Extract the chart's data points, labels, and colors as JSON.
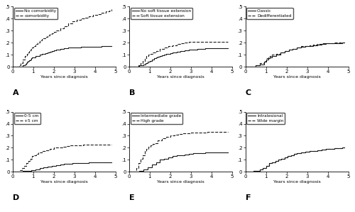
{
  "panels": [
    {
      "label": "A",
      "legend": [
        "No comorbidity",
        "comorbidity"
      ],
      "linestyles": [
        "solid",
        "dashed"
      ],
      "lines": [
        {
          "x": [
            0,
            0.45,
            0.5,
            0.55,
            0.6,
            0.65,
            0.7,
            0.75,
            0.8,
            0.85,
            0.9,
            0.95,
            1.0,
            1.1,
            1.2,
            1.3,
            1.4,
            1.5,
            1.6,
            1.7,
            1.8,
            1.9,
            2.0,
            2.1,
            2.2,
            2.3,
            2.5,
            2.7,
            2.9,
            3.1,
            3.3,
            3.5,
            3.7,
            3.9,
            4.1,
            4.3,
            4.5,
            4.7,
            4.8
          ],
          "y": [
            0,
            0,
            0.01,
            0.015,
            0.02,
            0.03,
            0.04,
            0.05,
            0.055,
            0.06,
            0.07,
            0.075,
            0.08,
            0.09,
            0.09,
            0.1,
            0.105,
            0.11,
            0.115,
            0.12,
            0.125,
            0.13,
            0.135,
            0.14,
            0.145,
            0.15,
            0.155,
            0.16,
            0.16,
            0.162,
            0.164,
            0.165,
            0.167,
            0.168,
            0.169,
            0.17,
            0.17,
            0.17,
            0.17
          ]
        },
        {
          "x": [
            0,
            0.3,
            0.4,
            0.5,
            0.6,
            0.7,
            0.75,
            0.8,
            0.85,
            0.9,
            0.95,
            1.0,
            1.1,
            1.2,
            1.3,
            1.4,
            1.5,
            1.6,
            1.7,
            1.8,
            1.9,
            2.0,
            2.1,
            2.3,
            2.5,
            2.7,
            2.9,
            3.1,
            3.3,
            3.5,
            3.7,
            3.9,
            4.1,
            4.3,
            4.5,
            4.7,
            4.8
          ],
          "y": [
            0,
            0.01,
            0.03,
            0.06,
            0.09,
            0.11,
            0.12,
            0.13,
            0.14,
            0.15,
            0.16,
            0.17,
            0.19,
            0.2,
            0.22,
            0.23,
            0.24,
            0.25,
            0.26,
            0.27,
            0.28,
            0.29,
            0.3,
            0.32,
            0.34,
            0.36,
            0.38,
            0.39,
            0.4,
            0.41,
            0.42,
            0.43,
            0.44,
            0.45,
            0.46,
            0.47,
            0.48
          ]
        }
      ]
    },
    {
      "label": "B",
      "legend": [
        "No soft tissue extension",
        "Soft tissue extension"
      ],
      "linestyles": [
        "solid",
        "dashed"
      ],
      "lines": [
        {
          "x": [
            0,
            0.5,
            0.6,
            0.7,
            0.8,
            0.9,
            1.0,
            1.1,
            1.2,
            1.3,
            1.4,
            1.5,
            1.6,
            1.7,
            1.8,
            1.9,
            2.0,
            2.1,
            2.3,
            2.5,
            2.7,
            2.9,
            3.1,
            3.3,
            3.5,
            3.7,
            3.9,
            4.1,
            4.3,
            4.5,
            4.7,
            4.8
          ],
          "y": [
            0,
            0.01,
            0.015,
            0.02,
            0.03,
            0.04,
            0.05,
            0.06,
            0.07,
            0.08,
            0.085,
            0.09,
            0.095,
            0.1,
            0.105,
            0.11,
            0.115,
            0.12,
            0.125,
            0.13,
            0.135,
            0.14,
            0.145,
            0.148,
            0.15,
            0.152,
            0.153,
            0.154,
            0.155,
            0.155,
            0.155,
            0.155
          ]
        },
        {
          "x": [
            0,
            0.45,
            0.55,
            0.65,
            0.75,
            0.85,
            0.95,
            1.05,
            1.15,
            1.3,
            1.5,
            1.7,
            1.9,
            2.0,
            2.1,
            2.3,
            2.5,
            2.7,
            2.9,
            3.1,
            3.3,
            3.5,
            3.7,
            3.9,
            4.1,
            4.3,
            4.5,
            4.7,
            4.8
          ],
          "y": [
            0,
            0.01,
            0.03,
            0.05,
            0.07,
            0.09,
            0.1,
            0.11,
            0.12,
            0.13,
            0.15,
            0.16,
            0.17,
            0.175,
            0.18,
            0.19,
            0.195,
            0.2,
            0.205,
            0.21,
            0.21,
            0.21,
            0.21,
            0.21,
            0.21,
            0.21,
            0.21,
            0.21,
            0.21
          ]
        }
      ]
    },
    {
      "label": "C",
      "legend": [
        "Classic",
        "Dedifferentiated"
      ],
      "linestyles": [
        "solid",
        "dashed"
      ],
      "lines": [
        {
          "x": [
            0,
            0.5,
            0.7,
            0.9,
            1.0,
            1.1,
            1.2,
            1.3,
            1.5,
            1.7,
            1.9,
            2.1,
            2.3,
            2.5,
            2.7,
            2.9,
            3.1,
            3.3,
            3.5,
            3.7,
            3.9,
            4.1,
            4.3,
            4.5,
            4.7,
            4.8
          ],
          "y": [
            0,
            0.01,
            0.02,
            0.04,
            0.06,
            0.07,
            0.08,
            0.09,
            0.1,
            0.12,
            0.13,
            0.14,
            0.15,
            0.16,
            0.165,
            0.17,
            0.175,
            0.18,
            0.185,
            0.19,
            0.193,
            0.195,
            0.197,
            0.198,
            0.2,
            0.2
          ]
        },
        {
          "x": [
            0,
            0.5,
            0.7,
            0.9,
            1.0,
            1.1,
            1.2,
            1.3,
            1.5,
            1.7,
            1.9,
            2.1,
            2.3,
            2.5,
            2.7,
            2.9,
            3.1,
            3.3,
            3.5,
            3.7,
            3.9,
            4.1,
            4.3,
            4.5,
            4.7,
            4.8
          ],
          "y": [
            0,
            0.01,
            0.03,
            0.05,
            0.07,
            0.08,
            0.09,
            0.1,
            0.11,
            0.12,
            0.13,
            0.14,
            0.15,
            0.16,
            0.17,
            0.175,
            0.18,
            0.185,
            0.19,
            0.193,
            0.196,
            0.198,
            0.199,
            0.2,
            0.2,
            0.2
          ]
        }
      ]
    },
    {
      "label": "D",
      "legend": [
        "0-5 cm",
        "+5 cm"
      ],
      "linestyles": [
        "solid",
        "dashed"
      ],
      "lines": [
        {
          "x": [
            0,
            0.5,
            0.7,
            0.9,
            1.1,
            1.3,
            1.5,
            1.7,
            1.9,
            2.1,
            2.3,
            2.5,
            2.7,
            2.9,
            3.1,
            3.3,
            3.5,
            3.7,
            3.9,
            4.1,
            4.3,
            4.5,
            4.7,
            4.8
          ],
          "y": [
            0,
            0.005,
            0.01,
            0.015,
            0.02,
            0.03,
            0.04,
            0.045,
            0.05,
            0.055,
            0.06,
            0.065,
            0.067,
            0.07,
            0.072,
            0.074,
            0.075,
            0.076,
            0.077,
            0.078,
            0.078,
            0.08,
            0.08,
            0.08
          ]
        },
        {
          "x": [
            0,
            0.35,
            0.45,
            0.55,
            0.65,
            0.75,
            0.85,
            0.95,
            1.05,
            1.15,
            1.25,
            1.4,
            1.6,
            1.8,
            2.0,
            2.2,
            2.4,
            2.6,
            2.8,
            3.0,
            3.2,
            3.4,
            3.6,
            3.8,
            4.0,
            4.2,
            4.4,
            4.6,
            4.8
          ],
          "y": [
            0,
            0.015,
            0.03,
            0.05,
            0.07,
            0.09,
            0.11,
            0.13,
            0.14,
            0.15,
            0.16,
            0.17,
            0.18,
            0.19,
            0.2,
            0.205,
            0.21,
            0.215,
            0.22,
            0.22,
            0.222,
            0.223,
            0.224,
            0.225,
            0.225,
            0.225,
            0.225,
            0.225,
            0.225
          ]
        }
      ]
    },
    {
      "label": "E",
      "legend": [
        "Intermediate grade",
        "High grade"
      ],
      "linestyles": [
        "solid",
        "dashed"
      ],
      "lines": [
        {
          "x": [
            0,
            0.5,
            0.7,
            0.9,
            1.1,
            1.3,
            1.5,
            1.7,
            1.9,
            2.1,
            2.3,
            2.5,
            2.7,
            2.9,
            3.1,
            3.3,
            3.5,
            3.7,
            3.9,
            4.1,
            4.3,
            4.5,
            4.7,
            4.8
          ],
          "y": [
            0,
            0.01,
            0.02,
            0.04,
            0.06,
            0.08,
            0.1,
            0.11,
            0.12,
            0.13,
            0.135,
            0.14,
            0.145,
            0.15,
            0.153,
            0.156,
            0.158,
            0.159,
            0.16,
            0.16,
            0.16,
            0.16,
            0.16,
            0.16
          ]
        },
        {
          "x": [
            0,
            0.35,
            0.45,
            0.55,
            0.65,
            0.75,
            0.85,
            0.95,
            1.05,
            1.15,
            1.25,
            1.4,
            1.6,
            1.8,
            2.0,
            2.1,
            2.2,
            2.4,
            2.6,
            2.8,
            3.0,
            3.2,
            3.4,
            3.6,
            3.8,
            4.0,
            4.2,
            4.4,
            4.6,
            4.8
          ],
          "y": [
            0,
            0.03,
            0.07,
            0.11,
            0.14,
            0.17,
            0.19,
            0.21,
            0.22,
            0.23,
            0.24,
            0.26,
            0.28,
            0.29,
            0.3,
            0.305,
            0.31,
            0.315,
            0.32,
            0.322,
            0.324,
            0.326,
            0.328,
            0.329,
            0.33,
            0.33,
            0.33,
            0.33,
            0.33,
            0.33
          ]
        }
      ]
    },
    {
      "label": "F",
      "legend": [
        "Intralesional",
        "Wide margin"
      ],
      "linestyles": [
        "solid",
        "dashed"
      ],
      "lines": [
        {
          "x": [
            0,
            0.4,
            0.55,
            0.7,
            0.85,
            1.0,
            1.15,
            1.3,
            1.45,
            1.6,
            1.75,
            1.9,
            2.05,
            2.2,
            2.35,
            2.5,
            2.7,
            2.9,
            3.1,
            3.3,
            3.5,
            3.7,
            3.9,
            4.1,
            4.3,
            4.5,
            4.7,
            4.8
          ],
          "y": [
            0,
            0.005,
            0.01,
            0.02,
            0.03,
            0.05,
            0.07,
            0.08,
            0.09,
            0.1,
            0.11,
            0.12,
            0.13,
            0.14,
            0.15,
            0.155,
            0.16,
            0.165,
            0.17,
            0.175,
            0.18,
            0.185,
            0.19,
            0.193,
            0.196,
            0.198,
            0.2,
            0.2
          ]
        },
        {
          "x": [
            0,
            0.4,
            0.55,
            0.7,
            0.85,
            1.0,
            1.15,
            1.3,
            1.45,
            1.6,
            1.75,
            1.9,
            2.05,
            2.2,
            2.35,
            2.5,
            2.7,
            2.9,
            3.1,
            3.3,
            3.5,
            3.7,
            3.9,
            4.1,
            4.3,
            4.5,
            4.7,
            4.8
          ],
          "y": [
            0,
            0.005,
            0.01,
            0.02,
            0.03,
            0.05,
            0.07,
            0.08,
            0.09,
            0.1,
            0.11,
            0.12,
            0.13,
            0.14,
            0.15,
            0.155,
            0.16,
            0.165,
            0.17,
            0.175,
            0.18,
            0.185,
            0.19,
            0.193,
            0.196,
            0.198,
            0.2,
            0.2
          ]
        }
      ]
    }
  ],
  "xlabel": "Years since diagnosis",
  "linecolor": "#1a1a1a",
  "linewidth": 0.8,
  "bg_color": "#ffffff",
  "panel_bg": "#ffffff",
  "border_color": "#aaaaaa",
  "yticks": [
    0,
    0.1,
    0.2,
    0.3,
    0.4,
    0.5
  ],
  "ytick_labels": [
    "0",
    ".1",
    ".2",
    ".3",
    ".4",
    ".5"
  ],
  "xticks": [
    0,
    1,
    2,
    3,
    4,
    5
  ],
  "xtick_labels": [
    "0",
    "1",
    "2",
    "3",
    "4",
    "5"
  ]
}
